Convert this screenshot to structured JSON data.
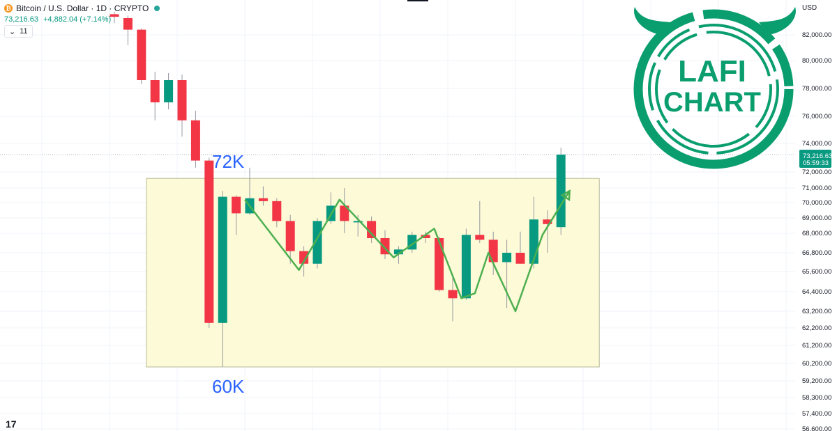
{
  "header": {
    "coin_icon": "bitcoin-icon",
    "title": "Bitcoin / U.S. Dollar · 1D · CRYPTO",
    "last_price": "73,216.63",
    "change": "+4,882.04 (+7.14%)",
    "volume_toggle_icon": "chevron-down-icon",
    "volume_count": "11"
  },
  "currency_label": "USD",
  "tv_logo": "17",
  "price_badge": {
    "price": "73,216.63",
    "countdown": "05:59:33",
    "color": "#089981"
  },
  "annotations": {
    "label_high": "72K",
    "label_low": "60K",
    "label_color": "#2962ff",
    "range_box_color": "#fdf9d3",
    "path_color": "#4caf50"
  },
  "watermark": {
    "line1": "LAFI",
    "line2": "CHART",
    "color": "#0a9e6e"
  },
  "chart_data": {
    "type": "candlestick",
    "axis_ticks": [
      {
        "value": 82000,
        "label": "82,000.00"
      },
      {
        "value": 80000,
        "label": "80,000.00"
      },
      {
        "value": 78000,
        "label": "78,000.00"
      },
      {
        "value": 76000,
        "label": "76,000.00"
      },
      {
        "value": 74000,
        "label": "74,000.00"
      },
      {
        "value": 72000,
        "label": "72,000.00"
      },
      {
        "value": 71000,
        "label": "71,000.00"
      },
      {
        "value": 70000,
        "label": "70,000.00"
      },
      {
        "value": 69000,
        "label": "69,000.00"
      },
      {
        "value": 68000,
        "label": "68,000.00"
      },
      {
        "value": 66800,
        "label": "66,800.00"
      },
      {
        "value": 65600,
        "label": "65,600.00"
      },
      {
        "value": 64400,
        "label": "64,400.00"
      },
      {
        "value": 63200,
        "label": "63,200.00"
      },
      {
        "value": 62200,
        "label": "62,200.00"
      },
      {
        "value": 61200,
        "label": "61,200.00"
      },
      {
        "value": 60200,
        "label": "60,200.00"
      },
      {
        "value": 59200,
        "label": "59,200.00"
      },
      {
        "value": 58300,
        "label": "58,300.00"
      },
      {
        "value": 57400,
        "label": "57,400.00"
      },
      {
        "value": 56600,
        "label": "56,600.00"
      }
    ],
    "last_price_value": 73216.63,
    "up_color": "#089981",
    "down_color": "#f23645",
    "candles": [
      {
        "open": 83600,
        "high": 83800,
        "close": 83400,
        "low": 82900
      },
      {
        "open": 83300,
        "high": 83500,
        "close": 82400,
        "low": 81200
      },
      {
        "open": 82400,
        "high": 82500,
        "close": 78600,
        "low": 78300
      },
      {
        "open": 78600,
        "high": 79200,
        "close": 77000,
        "low": 75700
      },
      {
        "open": 77000,
        "high": 79100,
        "close": 78600,
        "low": 76500
      },
      {
        "open": 78600,
        "high": 79000,
        "close": 75700,
        "low": 74500
      },
      {
        "open": 75700,
        "high": 76400,
        "close": 72800,
        "low": 72300
      },
      {
        "open": 72800,
        "high": 73000,
        "close": 62500,
        "low": 62200
      },
      {
        "open": 62500,
        "high": 70800,
        "close": 70400,
        "low": 60000
      },
      {
        "open": 70400,
        "high": 70500,
        "close": 69300,
        "low": 67900
      },
      {
        "open": 69300,
        "high": 72300,
        "close": 70300,
        "low": 69200
      },
      {
        "open": 70300,
        "high": 71100,
        "close": 70100,
        "low": 69800
      },
      {
        "open": 70100,
        "high": 70300,
        "close": 68800,
        "low": 68400
      },
      {
        "open": 68800,
        "high": 69200,
        "close": 66900,
        "low": 66100
      },
      {
        "open": 66900,
        "high": 67200,
        "close": 66100,
        "low": 65300
      },
      {
        "open": 66100,
        "high": 69000,
        "close": 68800,
        "low": 65800
      },
      {
        "open": 68800,
        "high": 70700,
        "close": 69800,
        "low": 68600
      },
      {
        "open": 69800,
        "high": 71000,
        "close": 68800,
        "low": 68000
      },
      {
        "open": 68800,
        "high": 69200,
        "close": 68800,
        "low": 67800
      },
      {
        "open": 68800,
        "high": 69100,
        "close": 67700,
        "low": 67400
      },
      {
        "open": 67700,
        "high": 68200,
        "close": 66700,
        "low": 66400
      },
      {
        "open": 66700,
        "high": 67200,
        "close": 67000,
        "low": 66100
      },
      {
        "open": 67000,
        "high": 68100,
        "close": 67900,
        "low": 66800
      },
      {
        "open": 67900,
        "high": 68100,
        "close": 67700,
        "low": 67400
      },
      {
        "open": 67700,
        "high": 67800,
        "close": 64500,
        "low": 64400
      },
      {
        "open": 64500,
        "high": 65300,
        "close": 64000,
        "low": 62600
      },
      {
        "open": 64000,
        "high": 68300,
        "close": 67900,
        "low": 63900
      },
      {
        "open": 67900,
        "high": 70100,
        "close": 67600,
        "low": 67400
      },
      {
        "open": 67600,
        "high": 68100,
        "close": 66200,
        "low": 65400
      },
      {
        "open": 66200,
        "high": 67600,
        "close": 66800,
        "low": 63400
      },
      {
        "open": 66800,
        "high": 68100,
        "close": 66100,
        "low": 66100
      },
      {
        "open": 66100,
        "high": 70400,
        "close": 68900,
        "low": 65800
      },
      {
        "open": 68900,
        "high": 69500,
        "close": 68600,
        "low": 66800
      },
      {
        "open": 68400,
        "high": 73700,
        "close": 73216.63,
        "low": 67900
      }
    ],
    "range_zone": {
      "top": 71600,
      "bottom": 60000,
      "start_candle": 7,
      "end_candle": 33
    },
    "projection_path": [
      {
        "candle": 10,
        "value": 70200
      },
      {
        "candle": 14,
        "value": 65700
      },
      {
        "candle": 17,
        "value": 70200
      },
      {
        "candle": 21,
        "value": 66500
      },
      {
        "candle": 24,
        "value": 68300
      },
      {
        "candle": 26,
        "value": 64000
      },
      {
        "candle": 27,
        "value": 64300
      },
      {
        "candle": 28,
        "value": 66800
      },
      {
        "candle": 30,
        "value": 63200
      },
      {
        "candle": 32,
        "value": 67900
      },
      {
        "candle": 34,
        "value": 70800
      }
    ]
  }
}
